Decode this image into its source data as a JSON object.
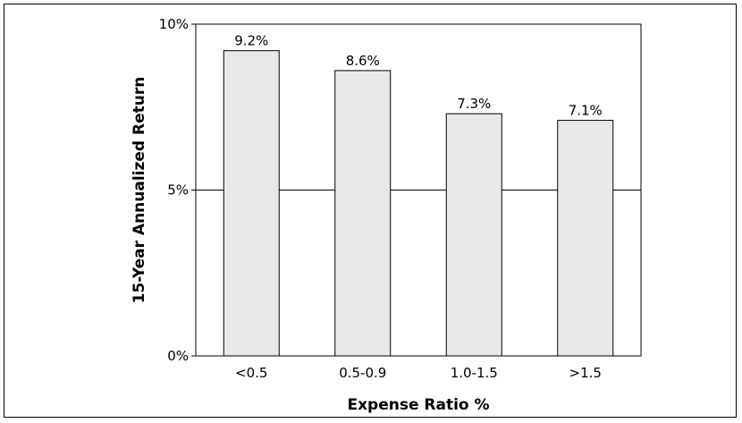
{
  "chart_data": {
    "type": "bar",
    "title": "",
    "xlabel": "Expense Ratio %",
    "ylabel": "15-Year Annualized Return",
    "categories": [
      "<0.5",
      "0.5-0.9",
      "1.0-1.5",
      ">1.5"
    ],
    "values": [
      9.2,
      8.6,
      7.3,
      7.1
    ],
    "data_labels": [
      "9.2%",
      "8.6%",
      "7.3%",
      "7.1%"
    ],
    "ylim": [
      0,
      10
    ],
    "yticks": [
      0,
      5,
      10
    ],
    "ytick_labels": [
      "0%",
      "5%",
      "10%"
    ],
    "gridlines_y": [
      5
    ],
    "grid": true,
    "legend": "none",
    "colors": {
      "bar_fill": "#e8e8e8",
      "bar_stroke": "#000000",
      "axis": "#000000"
    }
  }
}
